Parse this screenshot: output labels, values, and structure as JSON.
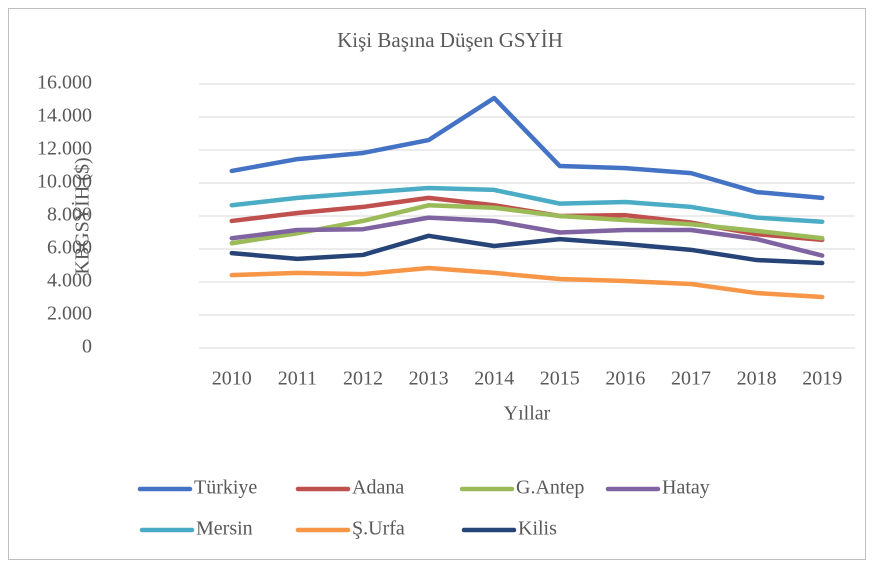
{
  "chart_data": {
    "type": "line",
    "title": "Kişi Başına Düşen GSYİH",
    "x_label": "Yıllar",
    "y_label": "KBGSYİH  ($)",
    "categories": [
      "2010",
      "2011",
      "2012",
      "2013",
      "2014",
      "2015",
      "2016",
      "2017",
      "2018",
      "2019"
    ],
    "ylim": [
      0,
      16000
    ],
    "yticks": [
      0,
      {
        "value": 2000,
        "label": "2.000"
      },
      {
        "value": 4000,
        "label": "4.000"
      },
      {
        "value": 6000,
        "label": "6.000"
      },
      {
        "value": 8000,
        "label": "8.000"
      },
      {
        "value": 10000,
        "label": "10.000"
      },
      {
        "value": 12000,
        "label": "12.000"
      },
      {
        "value": 14000,
        "label": "14.000"
      },
      {
        "value": 16000,
        "label": "16.000"
      }
    ],
    "grid": true,
    "legend": "bottom",
    "series": [
      {
        "name": "Türkiye",
        "color": "#4472c4",
        "values": [
          10730,
          11450,
          11820,
          12600,
          15150,
          11030,
          10900,
          10600,
          9450,
          9100
        ]
      },
      {
        "name": "Adana",
        "color": "#c0504d",
        "values": [
          7700,
          8180,
          8550,
          9100,
          8650,
          8000,
          8050,
          7600,
          6900,
          6550
        ]
      },
      {
        "name": "G.Antep",
        "color": "#9bbb59",
        "values": [
          6350,
          6950,
          7700,
          8650,
          8500,
          8000,
          7750,
          7500,
          7100,
          6650
        ]
      },
      {
        "name": "Hatay",
        "color": "#8064a2",
        "values": [
          6650,
          7150,
          7200,
          7900,
          7700,
          7000,
          7150,
          7150,
          6600,
          5600
        ]
      },
      {
        "name": "Mersin",
        "color": "#4bacc6",
        "values": [
          8650,
          9100,
          9400,
          9700,
          9580,
          8750,
          8850,
          8550,
          7900,
          7650
        ]
      },
      {
        "name": "Ş.Urfa",
        "color": "#f79646",
        "values": [
          4420,
          4550,
          4480,
          4850,
          4550,
          4180,
          4060,
          3880,
          3330,
          3090
        ]
      },
      {
        "name": "Kilis",
        "color": "#264478",
        "values": [
          5750,
          5400,
          5640,
          6800,
          6180,
          6600,
          6300,
          5950,
          5330,
          5150
        ]
      }
    ]
  }
}
